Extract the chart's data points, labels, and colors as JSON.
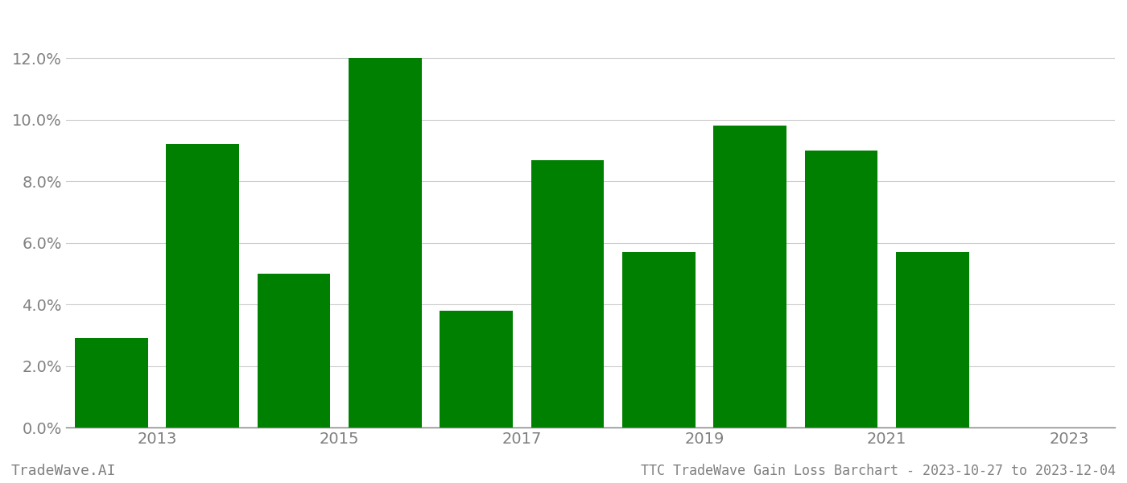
{
  "bar_positions": [
    2012.5,
    2013.5,
    2014.5,
    2015.5,
    2016.5,
    2017.5,
    2018.5,
    2019.5,
    2020.5,
    2021.5
  ],
  "values": [
    0.029,
    0.092,
    0.05,
    0.12,
    0.038,
    0.087,
    0.057,
    0.098,
    0.09,
    0.057
  ],
  "bar_color": "#008000",
  "background_color": "#ffffff",
  "ylabel_color": "#808080",
  "xlabel_color": "#808080",
  "grid_color": "#cccccc",
  "title_text": "TTC TradeWave Gain Loss Barchart - 2023-10-27 to 2023-12-04",
  "watermark_text": "TradeWave.AI",
  "ylim": [
    0,
    0.135
  ],
  "ytick_values": [
    0.0,
    0.02,
    0.04,
    0.06,
    0.08,
    0.1,
    0.12
  ],
  "xtick_positions": [
    2013,
    2015,
    2017,
    2019,
    2021,
    2023
  ],
  "xlim": [
    2012.0,
    2023.5
  ],
  "bar_width": 0.8,
  "title_fontsize": 12,
  "tick_fontsize": 14,
  "watermark_fontsize": 13,
  "tick_color": "#808080"
}
